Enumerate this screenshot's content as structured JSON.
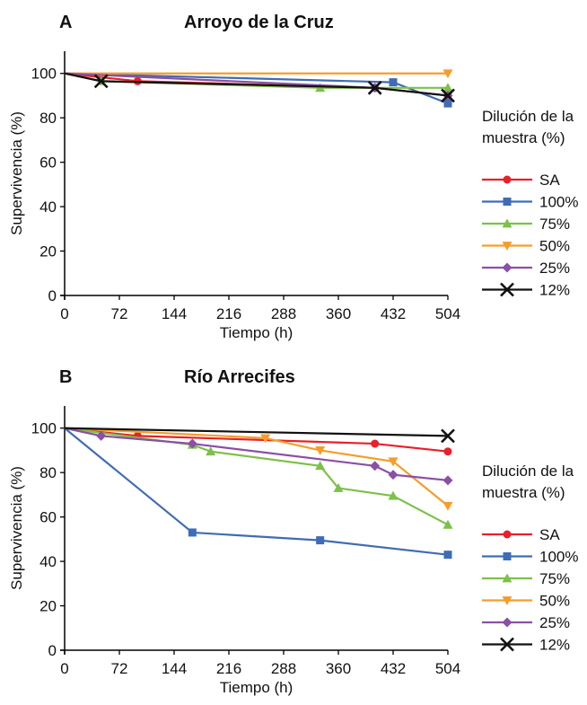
{
  "chart_data": [
    {
      "type": "line",
      "panel": "A",
      "title": "Arroyo de la Cruz",
      "xlabel": "Tiempo (h)",
      "ylabel": "Supervivencia (%)",
      "x_ticks": [
        0,
        72,
        144,
        216,
        288,
        360,
        432,
        504
      ],
      "y_ticks": [
        0,
        20,
        40,
        60,
        80,
        100
      ],
      "xlim": [
        0,
        504
      ],
      "ylim": [
        0,
        110
      ],
      "legend_title_line1": "Dilución de la",
      "legend_title_line2": "muestra (%)",
      "legend_position": "right",
      "grid": false,
      "series": [
        {
          "name": "SA",
          "color": "#e8202a",
          "marker": "circle",
          "x": [
            0,
            96,
            408,
            504
          ],
          "y": [
            100,
            96.5,
            93.5,
            90
          ]
        },
        {
          "name": "100%",
          "color": "#3f6cb6",
          "marker": "square",
          "x": [
            0,
            432,
            504
          ],
          "y": [
            100,
            96,
            86.5
          ]
        },
        {
          "name": "75%",
          "color": "#7cc148",
          "marker": "triangle-up",
          "x": [
            0,
            48,
            336,
            504
          ],
          "y": [
            100,
            96.5,
            93.5,
            93.5
          ]
        },
        {
          "name": "50%",
          "color": "#f59d2a",
          "marker": "triangle-down",
          "x": [
            0,
            504
          ],
          "y": [
            100,
            100
          ]
        },
        {
          "name": "25%",
          "color": "#8b4fa5",
          "marker": "diamond",
          "x": [
            0,
            408,
            504
          ],
          "y": [
            100,
            93.5,
            90
          ]
        },
        {
          "name": "12%",
          "color": "#111111",
          "marker": "x",
          "x": [
            0,
            48,
            408,
            504
          ],
          "y": [
            100,
            96.5,
            93.5,
            90
          ]
        }
      ]
    },
    {
      "type": "line",
      "panel": "B",
      "title": "Río Arrecifes",
      "xlabel": "Tiempo (h)",
      "ylabel": "Supervivencia (%)",
      "x_ticks": [
        0,
        72,
        144,
        216,
        288,
        360,
        432,
        504
      ],
      "y_ticks": [
        0,
        20,
        40,
        60,
        80,
        100
      ],
      "xlim": [
        0,
        504
      ],
      "ylim": [
        0,
        110
      ],
      "legend_title_line1": "Dilución de la",
      "legend_title_line2": "muestra (%)",
      "legend_position": "right",
      "grid": false,
      "series": [
        {
          "name": "SA",
          "color": "#e8202a",
          "marker": "circle",
          "x": [
            0,
            96,
            408,
            504
          ],
          "y": [
            100,
            96.5,
            93,
            89.5
          ]
        },
        {
          "name": "100%",
          "color": "#3f6cb6",
          "marker": "square",
          "x": [
            0,
            168,
            336,
            504
          ],
          "y": [
            100,
            53,
            49.5,
            43
          ]
        },
        {
          "name": "75%",
          "color": "#7cc148",
          "marker": "triangle-up",
          "x": [
            0,
            168,
            192,
            336,
            360,
            432,
            504
          ],
          "y": [
            100,
            92.5,
            89.5,
            83,
            73,
            69.5,
            56.5
          ]
        },
        {
          "name": "50%",
          "color": "#f59d2a",
          "marker": "triangle-down",
          "x": [
            0,
            264,
            336,
            432,
            504
          ],
          "y": [
            100,
            95.5,
            90,
            85,
            65
          ]
        },
        {
          "name": "25%",
          "color": "#8b4fa5",
          "marker": "diamond",
          "x": [
            0,
            48,
            168,
            408,
            432,
            504
          ],
          "y": [
            100,
            96.5,
            93,
            83,
            79,
            76.5
          ]
        },
        {
          "name": "12%",
          "color": "#111111",
          "marker": "x",
          "x": [
            0,
            504
          ],
          "y": [
            100,
            96.5
          ]
        }
      ]
    }
  ]
}
